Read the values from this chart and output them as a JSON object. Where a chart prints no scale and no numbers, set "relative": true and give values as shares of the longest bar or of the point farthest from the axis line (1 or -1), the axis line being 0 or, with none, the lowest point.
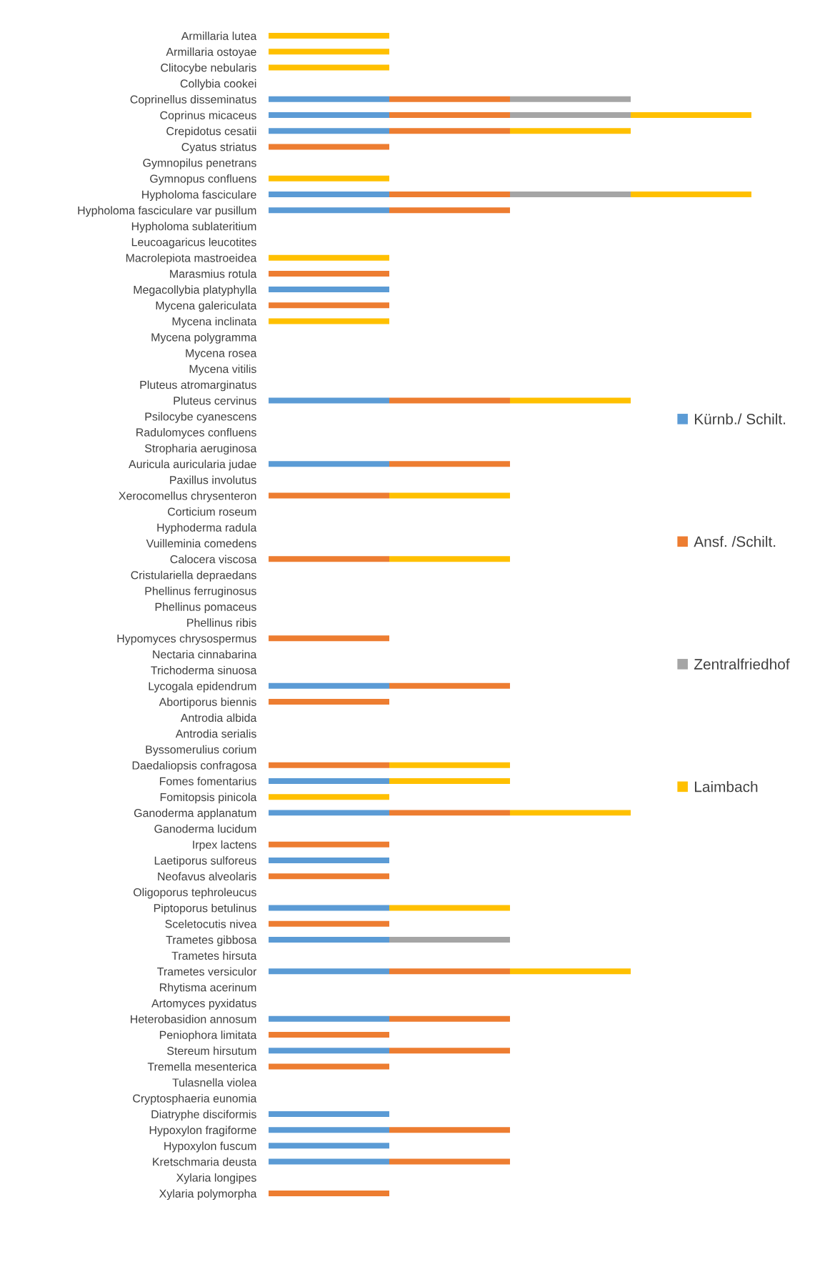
{
  "chart_data": {
    "type": "bar",
    "orientation": "horizontal",
    "stacked": true,
    "relative": true,
    "legend": "right",
    "categories": [
      "Armillaria lutea",
      "Armillaria ostoyae",
      "Clitocybe nebularis",
      "Collybia cookei",
      "Coprinellus disseminatus",
      "Coprinus micaceus",
      "Crepidotus cesatii",
      "Cyatus striatus",
      "Gymnopilus penetrans",
      "Gymnopus confluens",
      "Hypholoma fasciculare",
      "Hypholoma fasciculare var pusillum",
      "Hypholoma sublateritium",
      "Leucoagaricus leucotites",
      "Macrolepiota mastroeidea",
      "Marasmius rotula",
      "Megacollybia platyphylla",
      "Mycena galericulata",
      "Mycena inclinata",
      "Mycena polygramma",
      "Mycena rosea",
      "Mycena vitilis",
      "Pluteus atromarginatus",
      "Pluteus cervinus",
      "Psilocybe cyanescens",
      "Radulomyces confluens",
      "Stropharia aeruginosa",
      "Auricula auricularia judae",
      "Paxillus involutus",
      "Xerocomellus chrysenteron",
      "Corticium roseum",
      "Hyphoderma radula",
      "Vuilleminia comedens",
      "Calocera viscosa",
      "Cristulariella depraedans",
      "Phellinus ferruginosus",
      "Phellinus pomaceus",
      "Phellinus ribis",
      "Hypomyces chrysospermus",
      "Nectaria cinnabarina",
      "Trichoderma sinuosa",
      "Lycogala epidendrum",
      "Abortiporus biennis",
      "Antrodia albida",
      "Antrodia serialis",
      "Byssomerulius corium",
      "Daedaliopsis confragosa",
      "Fomes fomentarius",
      "Fomitopsis pinicola",
      "Ganoderma applanatum",
      "Ganoderma lucidum",
      "Irpex lactens",
      "Laetiporus sulforeus",
      "Neofavus alveolaris",
      "Oligoporus tephroleucus",
      "Piptoporus betulinus",
      "Sceletocutis nivea",
      "Trametes gibbosa",
      "Trametes hirsuta",
      "Trametes versiculor",
      "Rhytisma acerinum",
      "Artomyces pyxidatus",
      "Heterobasidion annosum",
      "Peniophora limitata",
      "Stereum hirsutum",
      "Tremella mesenterica",
      "Tulasnella violea",
      "Cryptosphaeria eunomia",
      "Diatryphe disciformis",
      "Hypoxylon fragiforme",
      "Hypoxylon fuscum",
      "Kretschmaria deusta",
      "Xylaria longipes",
      "Xylaria polymorpha"
    ],
    "series": [
      {
        "name": "Kürnb./ Schilt.",
        "color": "#5b9bd5",
        "values": [
          null,
          null,
          null,
          null,
          0.25,
          0.25,
          0.25,
          null,
          null,
          null,
          0.25,
          0.25,
          null,
          null,
          null,
          null,
          0.25,
          null,
          null,
          null,
          null,
          null,
          null,
          0.25,
          null,
          null,
          null,
          0.25,
          null,
          null,
          null,
          null,
          null,
          null,
          null,
          null,
          null,
          null,
          null,
          null,
          null,
          0.25,
          null,
          null,
          null,
          null,
          null,
          0.25,
          null,
          0.25,
          null,
          null,
          0.25,
          null,
          null,
          0.25,
          null,
          0.25,
          null,
          0.25,
          null,
          null,
          0.25,
          null,
          0.25,
          null,
          null,
          null,
          0.25,
          0.25,
          0.25,
          0.25,
          null,
          null
        ]
      },
      {
        "name": "Ansf. /Schilt.",
        "color": "#ed7d31",
        "values": [
          null,
          null,
          null,
          null,
          0.25,
          0.25,
          0.25,
          0.25,
          null,
          null,
          0.25,
          0.25,
          null,
          null,
          null,
          0.25,
          null,
          0.25,
          null,
          null,
          null,
          null,
          null,
          0.25,
          null,
          null,
          null,
          0.25,
          null,
          0.25,
          null,
          null,
          null,
          0.25,
          null,
          null,
          null,
          null,
          0.25,
          null,
          null,
          0.25,
          0.25,
          null,
          null,
          null,
          0.25,
          null,
          null,
          0.25,
          null,
          0.25,
          null,
          0.25,
          null,
          null,
          0.25,
          null,
          null,
          0.25,
          null,
          null,
          0.25,
          0.25,
          0.25,
          0.25,
          null,
          null,
          null,
          0.25,
          null,
          0.25,
          null,
          0.25
        ]
      },
      {
        "name": "Zentralfriedhof",
        "color": "#a5a5a5",
        "values": [
          null,
          null,
          null,
          null,
          0.25,
          0.25,
          null,
          null,
          null,
          null,
          0.25,
          null,
          null,
          null,
          null,
          null,
          null,
          null,
          null,
          null,
          null,
          null,
          null,
          null,
          null,
          null,
          null,
          null,
          null,
          null,
          null,
          null,
          null,
          null,
          null,
          null,
          null,
          null,
          null,
          null,
          null,
          null,
          null,
          null,
          null,
          null,
          null,
          null,
          null,
          null,
          null,
          null,
          null,
          null,
          null,
          null,
          null,
          0.25,
          null,
          null,
          null,
          null,
          null,
          null,
          null,
          null,
          null,
          null,
          null,
          null,
          null,
          null,
          null,
          null
        ]
      },
      {
        "name": "Laimbach",
        "color": "#ffc000",
        "values": [
          0.25,
          0.25,
          0.25,
          null,
          null,
          0.25,
          0.25,
          null,
          null,
          0.25,
          0.25,
          null,
          null,
          null,
          0.25,
          null,
          null,
          null,
          0.25,
          null,
          null,
          null,
          null,
          0.25,
          null,
          null,
          null,
          null,
          null,
          0.25,
          null,
          null,
          null,
          0.25,
          null,
          null,
          null,
          null,
          null,
          null,
          null,
          null,
          null,
          null,
          null,
          null,
          0.25,
          0.25,
          0.25,
          0.25,
          null,
          null,
          null,
          null,
          null,
          0.25,
          null,
          null,
          null,
          0.25,
          null,
          null,
          null,
          null,
          null,
          null,
          null,
          null,
          null,
          null,
          null,
          null,
          null,
          null
        ]
      }
    ]
  }
}
